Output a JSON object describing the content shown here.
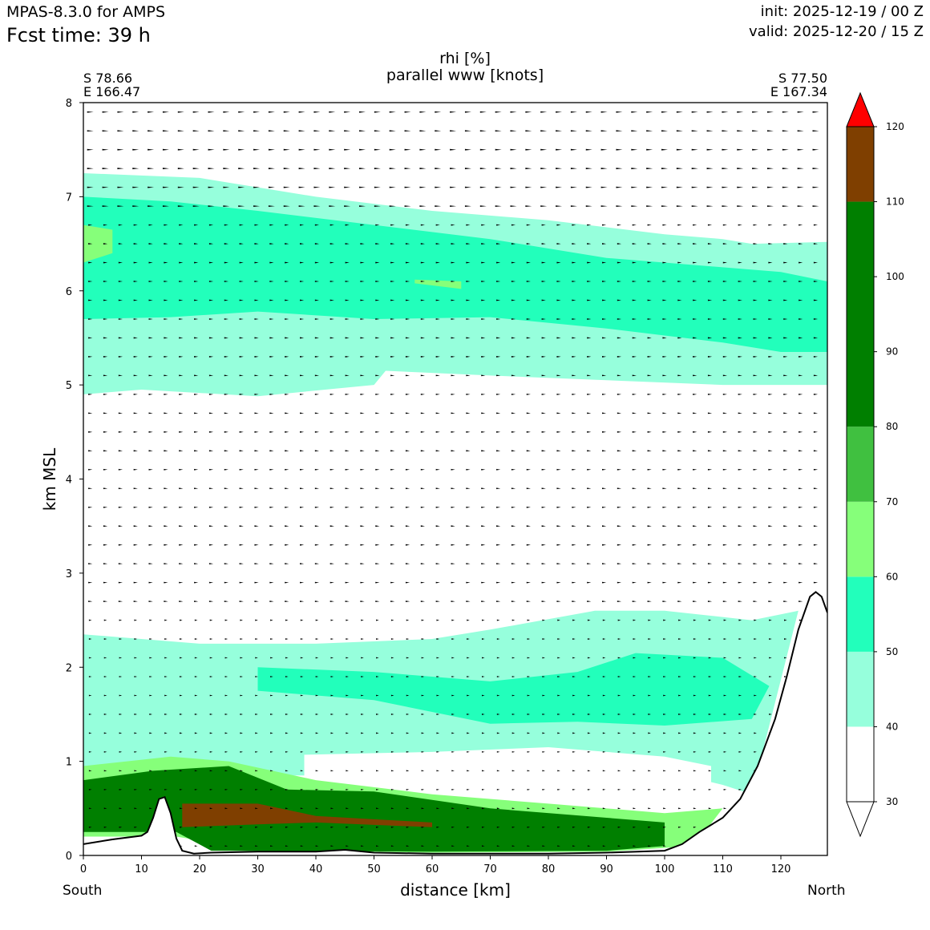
{
  "header": {
    "model": "MPAS-8.3.0 for AMPS",
    "fcst": "Fcst time:   39 h",
    "init": "init: 2025-12-19 / 00 Z",
    "valid": "valid: 2025-12-20 / 15 Z"
  },
  "corners": {
    "left_lat": "S 78.66",
    "left_lon": "E 166.47",
    "right_lat": "S 77.50",
    "right_lon": "E 167.34"
  },
  "directions": {
    "left": "South",
    "right": "North"
  },
  "chart_data": {
    "type": "contourf",
    "title": "rhi [%]",
    "subtitle": "parallel www [knots]",
    "xlabel": "distance [km]",
    "ylabel": "km MSL",
    "xlim": [
      0,
      128
    ],
    "ylim": [
      0,
      8
    ],
    "xticks": [
      0,
      10,
      20,
      30,
      40,
      50,
      60,
      70,
      80,
      90,
      100,
      110,
      120
    ],
    "yticks": [
      0,
      1,
      2,
      3,
      4,
      5,
      6,
      7,
      8
    ],
    "colorbar": {
      "levels": [
        30,
        40,
        50,
        60,
        70,
        80,
        90,
        100,
        110,
        120
      ],
      "bands": [
        {
          "from": 30,
          "to": 40,
          "color": "#ffffff"
        },
        {
          "from": 40,
          "to": 50,
          "color": "#96ffdc"
        },
        {
          "from": 50,
          "to": 60,
          "color": "#22ffbb"
        },
        {
          "from": 60,
          "to": 70,
          "color": "#86ff7a"
        },
        {
          "from": 70,
          "to": 80,
          "color": "#40c040"
        },
        {
          "from": 80,
          "to": 110,
          "color": "#007f00"
        },
        {
          "from": 110,
          "to": 120,
          "color": "#7f3f00"
        },
        {
          "from": 120,
          "to": 130,
          "color": "#ff0000"
        }
      ],
      "extend": "both"
    },
    "terrain": [
      [
        0,
        0.12
      ],
      [
        5,
        0.17
      ],
      [
        10,
        0.21
      ],
      [
        11,
        0.25
      ],
      [
        12,
        0.4
      ],
      [
        13,
        0.6
      ],
      [
        14,
        0.62
      ],
      [
        15,
        0.45
      ],
      [
        16,
        0.18
      ],
      [
        17,
        0.05
      ],
      [
        19,
        0.02
      ],
      [
        22,
        0.03
      ],
      [
        30,
        0.04
      ],
      [
        40,
        0.04
      ],
      [
        45,
        0.06
      ],
      [
        50,
        0.03
      ],
      [
        60,
        0.02
      ],
      [
        70,
        0.02
      ],
      [
        80,
        0.02
      ],
      [
        90,
        0.03
      ],
      [
        100,
        0.05
      ],
      [
        103,
        0.12
      ],
      [
        106,
        0.25
      ],
      [
        110,
        0.4
      ],
      [
        113,
        0.6
      ],
      [
        116,
        0.95
      ],
      [
        119,
        1.45
      ],
      [
        121,
        1.9
      ],
      [
        123,
        2.4
      ],
      [
        125,
        2.75
      ],
      [
        126,
        2.8
      ],
      [
        127,
        2.75
      ],
      [
        128,
        2.58
      ]
    ],
    "regions": [
      {
        "name": "upper-moist-layer",
        "value": 45,
        "top": [
          [
            0,
            7.25
          ],
          [
            20,
            7.2
          ],
          [
            40,
            7.0
          ],
          [
            60,
            6.85
          ],
          [
            80,
            6.75
          ],
          [
            100,
            6.6
          ],
          [
            110,
            6.55
          ],
          [
            115,
            6.5
          ],
          [
            128,
            6.52
          ]
        ],
        "bottom": [
          [
            0,
            4.9
          ],
          [
            10,
            4.95
          ],
          [
            30,
            4.88
          ],
          [
            50,
            5.0
          ],
          [
            52,
            5.15
          ],
          [
            70,
            5.1
          ],
          [
            90,
            5.05
          ],
          [
            110,
            5.0
          ],
          [
            128,
            5.0
          ]
        ]
      },
      {
        "name": "upper-core",
        "value": 55,
        "top": [
          [
            0,
            7.0
          ],
          [
            15,
            6.95
          ],
          [
            30,
            6.85
          ],
          [
            50,
            6.7
          ],
          [
            70,
            6.55
          ],
          [
            90,
            6.35
          ],
          [
            110,
            6.25
          ],
          [
            120,
            6.2
          ],
          [
            128,
            6.1
          ]
        ],
        "bottom": [
          [
            0,
            5.7
          ],
          [
            15,
            5.72
          ],
          [
            30,
            5.78
          ],
          [
            50,
            5.7
          ],
          [
            70,
            5.72
          ],
          [
            90,
            5.6
          ],
          [
            110,
            5.45
          ],
          [
            120,
            5.35
          ],
          [
            128,
            5.35
          ]
        ]
      },
      {
        "name": "upper-green-left",
        "value": 65,
        "top": [
          [
            0,
            6.7
          ],
          [
            5,
            6.65
          ]
        ],
        "bottom": [
          [
            0,
            6.3
          ],
          [
            5,
            6.4
          ]
        ]
      },
      {
        "name": "upper-green-mid",
        "value": 65,
        "top": [
          [
            57,
            6.12
          ],
          [
            65,
            6.1
          ]
        ],
        "bottom": [
          [
            57,
            6.08
          ],
          [
            65,
            6.02
          ]
        ]
      },
      {
        "name": "lower-moist-layer",
        "value": 45,
        "top": [
          [
            0,
            2.35
          ],
          [
            20,
            2.25
          ],
          [
            40,
            2.25
          ],
          [
            60,
            2.3
          ],
          [
            70,
            2.4
          ],
          [
            88,
            2.6
          ],
          [
            100,
            2.6
          ],
          [
            115,
            2.5
          ],
          [
            123,
            2.6
          ]
        ],
        "bottom": [
          [
            0,
            0.7
          ],
          [
            20,
            0.85
          ],
          [
            40,
            0.85
          ],
          [
            60,
            0.9
          ],
          [
            80,
            0.95
          ],
          [
            100,
            0.9
          ],
          [
            110,
            0.75
          ],
          [
            115,
            0.65
          ]
        ]
      },
      {
        "name": "lower-core",
        "value": 55,
        "top": [
          [
            30,
            2.0
          ],
          [
            50,
            1.95
          ],
          [
            70,
            1.85
          ],
          [
            85,
            1.95
          ],
          [
            95,
            2.15
          ],
          [
            110,
            2.1
          ],
          [
            118,
            1.8
          ]
        ],
        "bottom": [
          [
            30,
            1.75
          ],
          [
            50,
            1.65
          ],
          [
            70,
            1.4
          ],
          [
            85,
            1.42
          ],
          [
            100,
            1.38
          ],
          [
            115,
            1.45
          ]
        ]
      },
      {
        "name": "white-gap-lower",
        "value": 35,
        "top": [
          [
            38,
            1.07
          ],
          [
            60,
            1.1
          ],
          [
            80,
            1.15
          ],
          [
            100,
            1.05
          ],
          [
            108,
            0.95
          ]
        ],
        "bottom": [
          [
            38,
            0.82
          ],
          [
            60,
            0.85
          ],
          [
            80,
            0.75
          ],
          [
            100,
            0.55
          ],
          [
            108,
            0.7
          ]
        ]
      },
      {
        "name": "boundary-layer-60",
        "value": 65,
        "top": [
          [
            0,
            0.95
          ],
          [
            15,
            1.05
          ],
          [
            25,
            1.0
          ],
          [
            40,
            0.8
          ],
          [
            60,
            0.65
          ],
          [
            80,
            0.55
          ],
          [
            100,
            0.45
          ],
          [
            110,
            0.5
          ]
        ],
        "bottom": [
          [
            0,
            0.2
          ],
          [
            16,
            0.2
          ],
          [
            30,
            0.06
          ],
          [
            60,
            0.03
          ],
          [
            90,
            0.04
          ],
          [
            105,
            0.1
          ]
        ]
      },
      {
        "name": "boundary-layer-80",
        "value": 85,
        "top": [
          [
            0,
            0.8
          ],
          [
            12,
            0.9
          ],
          [
            25,
            0.95
          ],
          [
            35,
            0.7
          ],
          [
            50,
            0.68
          ],
          [
            70,
            0.5
          ],
          [
            90,
            0.4
          ],
          [
            100,
            0.35
          ]
        ],
        "bottom": [
          [
            0,
            0.25
          ],
          [
            16,
            0.25
          ],
          [
            22,
            0.05
          ],
          [
            60,
            0.04
          ],
          [
            90,
            0.05
          ],
          [
            100,
            0.1
          ]
        ]
      },
      {
        "name": "boundary-layer-110",
        "value": 115,
        "top": [
          [
            17,
            0.55
          ],
          [
            30,
            0.55
          ],
          [
            40,
            0.42
          ],
          [
            60,
            0.35
          ]
        ],
        "bottom": [
          [
            17,
            0.3
          ],
          [
            30,
            0.33
          ],
          [
            40,
            0.35
          ],
          [
            60,
            0.3
          ]
        ]
      }
    ],
    "wind_vectors": {
      "rows": "every ~0.2 km",
      "columns": "every ~2.6 km",
      "direction": "along-section, northward"
    }
  }
}
